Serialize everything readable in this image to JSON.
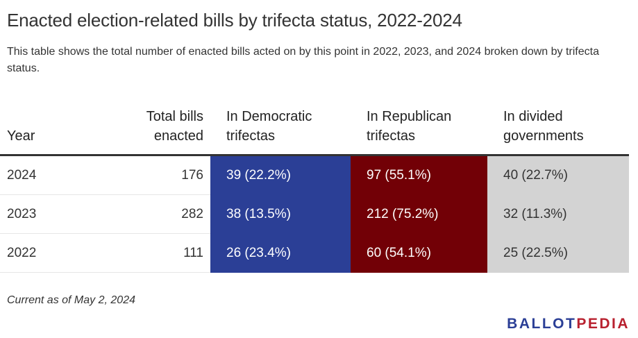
{
  "header": {
    "title": "Enacted election-related bills by trifecta status, 2022-2024",
    "subtitle": "This table shows the total number of enacted bills acted on by this point in 2022, 2023, and 2024 broken down by trifecta status."
  },
  "chart_data": {
    "type": "table",
    "title": "Enacted election-related bills by trifecta status, 2022-2024",
    "columns": [
      "Year",
      "Total bills enacted",
      "In Democratic trifectas",
      "In Republican trifectas",
      "In divided governments"
    ],
    "rows": [
      {
        "year": "2024",
        "total": "176",
        "dem": "39 (22.2%)",
        "rep": "97 (55.1%)",
        "div": "40 (22.7%)"
      },
      {
        "year": "2023",
        "total": "282",
        "dem": "38 (13.5%)",
        "rep": "212 (75.2%)",
        "div": "32 (11.3%)"
      },
      {
        "year": "2022",
        "total": "111",
        "dem": "26 (23.4%)",
        "rep": "60 (54.1%)",
        "div": "25 (22.5%)"
      }
    ]
  },
  "table": {
    "headers": {
      "year": "Year",
      "total_line1": "Total bills",
      "total_line2": "enacted",
      "dem_line1": "In Democratic",
      "dem_line2": "trifectas",
      "rep_line1": "In Republican",
      "rep_line2": "trifectas",
      "div_line1": "In divided",
      "div_line2": "governments"
    }
  },
  "colors": {
    "democratic": "#2b3f96",
    "republican": "#720006",
    "divided": "#d3d3d3"
  },
  "footer": {
    "note": "Current as of May 2, 2024",
    "logo_ballot": "BALLOT",
    "logo_pedia": "PEDIA"
  }
}
